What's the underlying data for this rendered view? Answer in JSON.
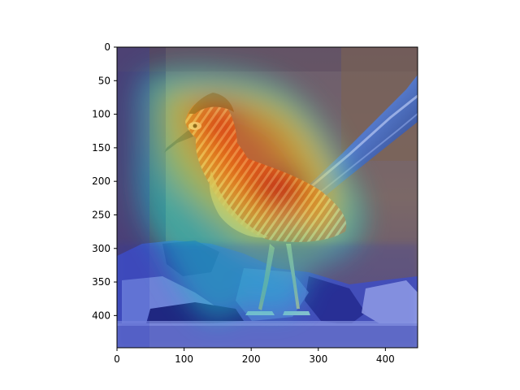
{
  "figure": {
    "subject": "roadrunner-on-rocks",
    "overlay": "heatmap",
    "colormap": "jet",
    "background_color": "#ffffff",
    "axis_color": "#000000"
  },
  "axes": {
    "xlim": [
      0,
      448
    ],
    "ylim": [
      448,
      0
    ],
    "x_ticks": [
      {
        "value": 0,
        "label": "0"
      },
      {
        "value": 100,
        "label": "100"
      },
      {
        "value": 200,
        "label": "200"
      },
      {
        "value": 300,
        "label": "300"
      },
      {
        "value": 400,
        "label": "400"
      }
    ],
    "y_ticks": [
      {
        "value": 0,
        "label": "0"
      },
      {
        "value": 50,
        "label": "50"
      },
      {
        "value": 100,
        "label": "100"
      },
      {
        "value": 150,
        "label": "150"
      },
      {
        "value": 200,
        "label": "200"
      },
      {
        "value": 250,
        "label": "250"
      },
      {
        "value": 300,
        "label": "300"
      },
      {
        "value": 350,
        "label": "350"
      },
      {
        "value": 400,
        "label": "400"
      }
    ]
  }
}
